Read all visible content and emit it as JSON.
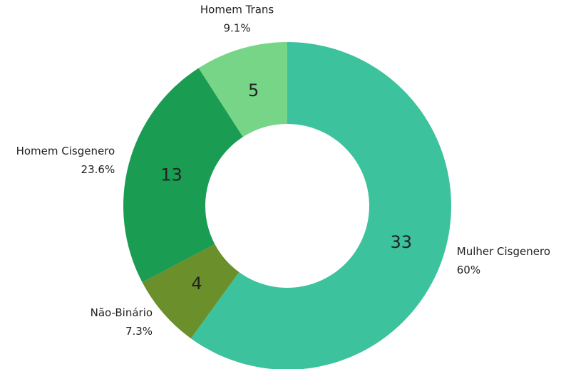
{
  "chart_data": {
    "type": "donut",
    "categories": [
      "Mulher Cisgenero",
      "Não-Binário",
      "Homem Cisgenero",
      "Homem Trans"
    ],
    "values": [
      33,
      4,
      13,
      5
    ],
    "percentages": [
      60,
      7.3,
      23.6,
      9.1
    ],
    "percentage_labels": [
      "60%",
      "7.3%",
      "23.6%",
      "9.1%"
    ],
    "colors": [
      "#3cc29c",
      "#6a8f2b",
      "#1a9c53",
      "#77d587"
    ]
  }
}
